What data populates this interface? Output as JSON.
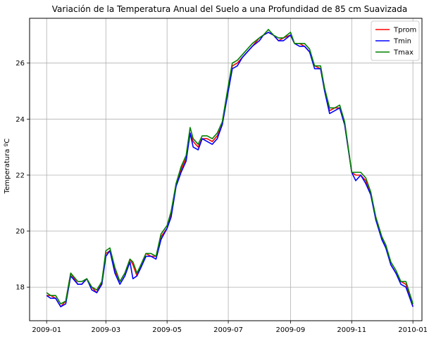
{
  "chart_data": {
    "type": "line",
    "title": "Variación de la Temperatura Anual del Suelo a una Profundidad de 85 cm Suavizada",
    "xlabel": "",
    "ylabel": "Temperatura ºC",
    "x_ticks": [
      "2009-01",
      "2009-03",
      "2009-05",
      "2009-07",
      "2009-09",
      "2009-11",
      "2010-01"
    ],
    "y_ticks": [
      18,
      20,
      22,
      24,
      26
    ],
    "xlim": [
      "2008-12-15",
      "2010-01-10"
    ],
    "ylim": [
      16.8,
      27.6
    ],
    "grid": true,
    "legend_position": "top-right",
    "x": [
      "2009-01-01",
      "2009-01-05",
      "2009-01-10",
      "2009-01-15",
      "2009-01-20",
      "2009-01-25",
      "2009-02-01",
      "2009-02-05",
      "2009-02-10",
      "2009-02-15",
      "2009-02-20",
      "2009-02-25",
      "2009-03-01",
      "2009-03-05",
      "2009-03-10",
      "2009-03-15",
      "2009-03-20",
      "2009-03-25",
      "2009-03-28",
      "2009-04-01",
      "2009-04-05",
      "2009-04-10",
      "2009-04-15",
      "2009-04-20",
      "2009-04-25",
      "2009-05-01",
      "2009-05-05",
      "2009-05-10",
      "2009-05-15",
      "2009-05-20",
      "2009-05-24",
      "2009-05-27",
      "2009-06-01",
      "2009-06-05",
      "2009-06-10",
      "2009-06-15",
      "2009-06-20",
      "2009-06-25",
      "2009-07-01",
      "2009-07-05",
      "2009-07-10",
      "2009-07-15",
      "2009-07-20",
      "2009-07-25",
      "2009-08-01",
      "2009-08-05",
      "2009-08-10",
      "2009-08-15",
      "2009-08-20",
      "2009-08-25",
      "2009-09-01",
      "2009-09-05",
      "2009-09-10",
      "2009-09-15",
      "2009-09-20",
      "2009-09-25",
      "2009-10-01",
      "2009-10-05",
      "2009-10-10",
      "2009-10-15",
      "2009-10-20",
      "2009-10-25",
      "2009-11-01",
      "2009-11-05",
      "2009-11-10",
      "2009-11-15",
      "2009-11-20",
      "2009-11-25",
      "2009-12-01",
      "2009-12-05",
      "2009-12-10",
      "2009-12-15",
      "2009-12-20",
      "2009-12-25",
      "2010-01-01"
    ],
    "series": [
      {
        "name": "Tprom",
        "color": "#ff0000",
        "values": [
          17.7,
          17.7,
          17.6,
          17.3,
          17.5,
          18.5,
          18.1,
          18.1,
          18.3,
          18.0,
          17.8,
          18.2,
          19.2,
          19.3,
          18.6,
          18.2,
          18.5,
          19.0,
          18.8,
          18.4,
          18.8,
          19.2,
          19.1,
          19.1,
          19.8,
          20.1,
          20.6,
          21.7,
          22.2,
          22.6,
          23.5,
          23.2,
          23.0,
          23.3,
          23.3,
          23.2,
          23.4,
          23.8,
          25.1,
          25.9,
          26.0,
          26.2,
          26.4,
          26.6,
          26.9,
          27.0,
          27.1,
          27.0,
          26.8,
          26.9,
          27.0,
          26.7,
          26.7,
          26.6,
          26.4,
          25.9,
          25.8,
          25.1,
          24.3,
          24.4,
          24.4,
          23.8,
          22.1,
          22.0,
          22.0,
          21.8,
          21.3,
          20.5,
          19.8,
          19.5,
          18.8,
          18.5,
          18.2,
          18.1,
          17.3
        ]
      },
      {
        "name": "Tmin",
        "color": "#0000ff",
        "values": [
          17.7,
          17.6,
          17.6,
          17.3,
          17.4,
          18.4,
          18.1,
          18.1,
          18.3,
          17.9,
          17.8,
          18.1,
          19.1,
          19.3,
          18.5,
          18.1,
          18.4,
          18.9,
          18.3,
          18.4,
          18.7,
          19.1,
          19.1,
          19.0,
          19.7,
          20.1,
          20.5,
          21.6,
          22.1,
          22.5,
          23.5,
          23.0,
          22.9,
          23.3,
          23.2,
          23.1,
          23.3,
          23.8,
          25.0,
          25.8,
          25.9,
          26.2,
          26.4,
          26.6,
          26.8,
          27.0,
          27.1,
          27.0,
          26.8,
          26.8,
          27.0,
          26.7,
          26.6,
          26.6,
          26.4,
          25.8,
          25.8,
          25.0,
          24.2,
          24.3,
          24.4,
          23.8,
          22.1,
          21.8,
          22.0,
          21.7,
          21.3,
          20.4,
          19.7,
          19.4,
          18.8,
          18.5,
          18.1,
          18.0,
          17.3
        ]
      },
      {
        "name": "Tmax",
        "color": "#008000",
        "values": [
          17.8,
          17.7,
          17.7,
          17.4,
          17.5,
          18.5,
          18.2,
          18.2,
          18.3,
          18.0,
          17.9,
          18.2,
          19.3,
          19.4,
          18.7,
          18.2,
          18.5,
          19.0,
          18.9,
          18.5,
          18.8,
          19.2,
          19.2,
          19.1,
          19.9,
          20.2,
          20.7,
          21.7,
          22.3,
          22.7,
          23.7,
          23.3,
          23.1,
          23.4,
          23.4,
          23.3,
          23.5,
          23.9,
          25.2,
          26.0,
          26.1,
          26.3,
          26.5,
          26.7,
          26.9,
          27.0,
          27.2,
          27.0,
          26.9,
          26.9,
          27.1,
          26.7,
          26.7,
          26.7,
          26.5,
          25.9,
          25.9,
          25.1,
          24.4,
          24.4,
          24.5,
          23.9,
          22.1,
          22.1,
          22.1,
          21.9,
          21.4,
          20.5,
          19.8,
          19.5,
          18.9,
          18.6,
          18.2,
          18.2,
          17.4
        ]
      }
    ]
  }
}
